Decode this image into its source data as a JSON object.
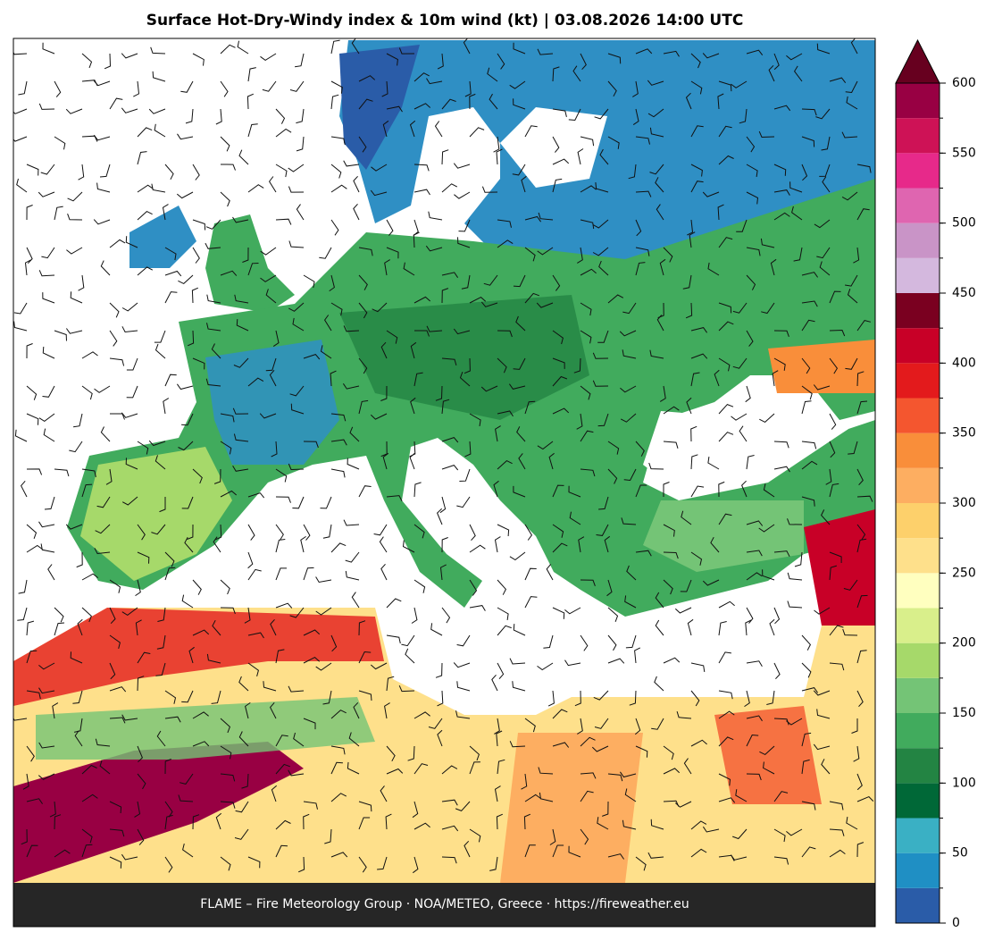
{
  "title": "Surface Hot-Dry-Windy index & 10m wind (kt)  |  03.08.2026 14:00 UTC",
  "footer": "FLAME – Fire Meteorology Group · NOA/METEO, Greece · https://fireweather.eu",
  "colorbar": {
    "lim": [
      0,
      600
    ],
    "ticks": [
      0,
      50,
      100,
      150,
      200,
      250,
      300,
      350,
      400,
      450,
      500,
      550,
      600
    ],
    "bounds": [
      0,
      25,
      50,
      75,
      100,
      125,
      150,
      175,
      200,
      225,
      250,
      275,
      300,
      325,
      350,
      375,
      400,
      425,
      450,
      475,
      500,
      525,
      550,
      575,
      600
    ],
    "colors": [
      "#2a5ca8",
      "#1f8fc4",
      "#3ab0c4",
      "#006837",
      "#238443",
      "#41ab5d",
      "#74c476",
      "#a6d96a",
      "#d9ef8b",
      "#ffffbf",
      "#fee08b",
      "#fdd06b",
      "#fdae61",
      "#f98e3a",
      "#f4562f",
      "#e31a1c",
      "#c80027",
      "#7a0020",
      "#d4b8de",
      "#c994c7",
      "#df65b0",
      "#e7298a",
      "#ce1256",
      "#980043"
    ],
    "extend_color": "#67001f"
  }
}
